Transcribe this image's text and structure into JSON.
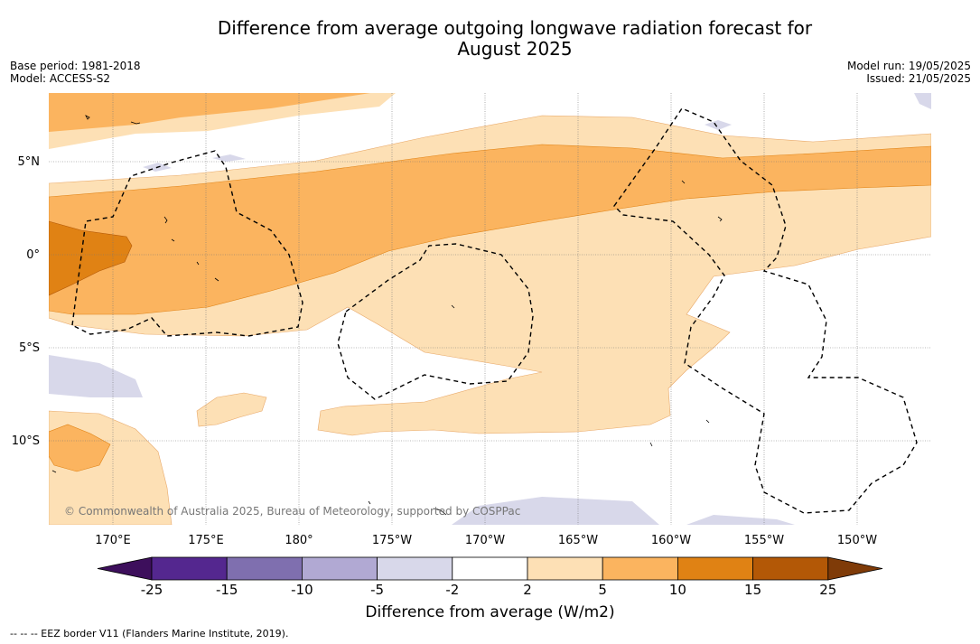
{
  "title_line1": "Difference from average outgoing longwave radiation forecast for",
  "title_line2": "August 2025",
  "base_period": "Base period: 1981-2018",
  "model": "Model: ACCESS-S2",
  "model_run": "Model run: 19/05/2025",
  "issued": "Issued: 21/05/2025",
  "copyright": "© Commonwealth of Australia 2025, Bureau of Meteorology, supported by COSPPac",
  "lat_labels": [
    "5°N",
    "0°",
    "5°S",
    "10°S"
  ],
  "lon_labels": [
    "170°E",
    "175°E",
    "180°",
    "175°W",
    "170°W",
    "165°W",
    "160°W",
    "155°W",
    "150°W"
  ],
  "colorbar": {
    "ticks": [
      "-25",
      "-15",
      "-10",
      "-5",
      "-2",
      "2",
      "5",
      "10",
      "15",
      "25"
    ],
    "colors": [
      "#3d0f5c",
      "#54278f",
      "#7f6faf",
      "#b1a9d3",
      "#d8d8ea",
      "#ffffff",
      "#fde0b5",
      "#fbb45f",
      "#e08214",
      "#b35806",
      "#7f3b08"
    ],
    "label": "Difference from average (W/m2)"
  },
  "footnote": "--  --  -- EEZ border V11 (Flanders Marine Institute, 2019)."
}
